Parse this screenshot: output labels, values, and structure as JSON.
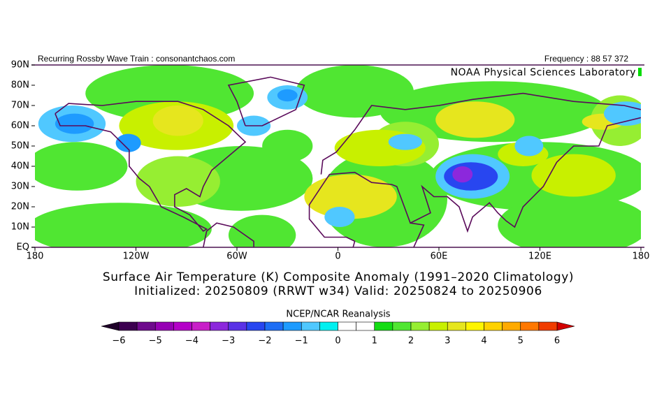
{
  "header": {
    "left": "Recurring Rossby Wave Train : consonantchaos.com",
    "right": "Frequency : 88 57 372",
    "lab": "NOAA Physical Sciences Laboratory"
  },
  "map": {
    "lat_labels": [
      "90N",
      "80N",
      "70N",
      "60N",
      "50N",
      "40N",
      "30N",
      "20N",
      "10N",
      "EQ"
    ],
    "lon_labels": [
      "180",
      "120W",
      "60W",
      "0",
      "60E",
      "120E",
      "180"
    ]
  },
  "title": {
    "line1": "Surface Air Temperature (K) Composite Anomaly (1991–2020 Climatology)",
    "line2": "Initialized: 20250809 (RRWT w34) Valid: 20250824 to 20250906"
  },
  "colorbar": {
    "title": "NCEP/NCAR Reanalysis",
    "labels": [
      "−6",
      "−5",
      "−4",
      "−3",
      "−2",
      "−1",
      "0",
      "1",
      "2",
      "3",
      "4",
      "5",
      "6"
    ],
    "colors": [
      "#3c0050",
      "#6e0a8c",
      "#9600b4",
      "#b400c8",
      "#c81ec8",
      "#8c28dc",
      "#5a32e6",
      "#2846f0",
      "#1e6ef5",
      "#1e9bff",
      "#50c8ff",
      "#00f0f0",
      "#ffffff",
      "#ffffff",
      "#14dc14",
      "#50e632",
      "#96ee32",
      "#c8f000",
      "#e6e61e",
      "#fff500",
      "#ffd200",
      "#ffaa00",
      "#ff7800",
      "#f03c00"
    ],
    "under": "#1e0028",
    "over": "#d20000"
  }
}
